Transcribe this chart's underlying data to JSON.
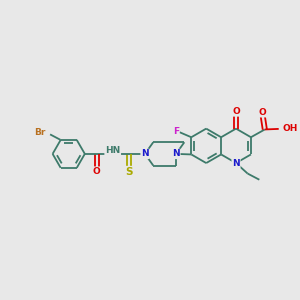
{
  "bg_color": "#e8e8e8",
  "bond_color": "#3d7a6a",
  "bond_lw": 1.3,
  "atom_colors": {
    "Br": "#b87020",
    "O": "#dd0000",
    "N": "#1a1acc",
    "S": "#aaaa00",
    "F": "#cc22cc",
    "H": "#3d7a6a",
    "C": "#3d7a6a"
  },
  "font_size": 6.5,
  "fig_size": [
    3.0,
    3.0
  ],
  "dpi": 100,
  "xlim": [
    0.0,
    10.5
  ],
  "ylim": [
    2.8,
    8.2
  ]
}
